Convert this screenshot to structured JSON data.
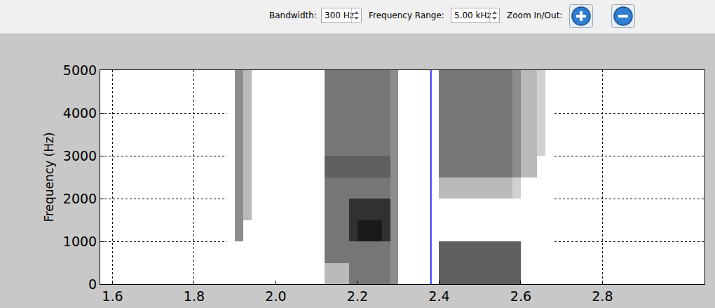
{
  "toolbar": {
    "bandwidth_label": "Bandwidth:",
    "bandwidth_value": "300 Hz",
    "range_label": "Frequency Range:",
    "range_value": "5.00 kHz",
    "zoom_label": "Zoom In/Out:"
  },
  "chart_data": {
    "type": "heatmap",
    "y_label": "Frequency (Hz)",
    "x": [
      1.89,
      1.91,
      1.93,
      1.95,
      1.97,
      1.99,
      2.01,
      2.03,
      2.05,
      2.07,
      2.09,
      2.11,
      2.13,
      2.15,
      2.17,
      2.19,
      2.21,
      2.23,
      2.25,
      2.27,
      2.29,
      2.31,
      2.33,
      2.35,
      2.37,
      2.39,
      2.41,
      2.43,
      2.45,
      2.47,
      2.49,
      2.51,
      2.53,
      2.55,
      2.57,
      2.59,
      2.61,
      2.63,
      2.65,
      2.67
    ],
    "y": [
      250,
      750,
      1250,
      1750,
      2250,
      2750,
      3250,
      3750,
      4250,
      4750
    ],
    "z": [
      [
        0,
        0,
        0,
        0,
        0,
        0,
        0,
        0,
        0,
        0,
        0,
        0,
        3,
        3,
        3,
        6,
        6,
        6,
        6,
        6,
        5,
        0,
        0,
        0,
        0,
        0,
        7,
        7,
        7,
        7,
        7,
        7,
        7,
        7,
        7,
        7,
        0,
        0,
        0,
        0
      ],
      [
        0,
        0,
        0,
        0,
        0,
        0,
        0,
        0,
        0,
        0,
        0,
        0,
        6,
        6,
        6,
        6,
        6,
        6,
        6,
        6,
        5,
        0,
        0,
        0,
        0,
        0,
        7,
        7,
        7,
        7,
        7,
        7,
        7,
        7,
        7,
        7,
        0,
        0,
        0,
        0
      ],
      [
        0,
        5,
        0,
        0,
        0,
        0,
        0,
        0,
        0,
        0,
        0,
        0,
        6,
        6,
        6,
        9,
        10,
        10,
        10,
        9,
        5,
        0,
        0,
        0,
        0,
        0,
        0,
        0,
        0,
        0,
        0,
        0,
        0,
        0,
        0,
        0,
        0,
        0,
        0,
        0
      ],
      [
        0,
        5,
        3,
        0,
        0,
        0,
        0,
        0,
        0,
        0,
        0,
        0,
        6,
        6,
        6,
        9,
        9,
        9,
        9,
        9,
        5,
        0,
        0,
        0,
        0,
        0,
        0,
        0,
        0,
        0,
        0,
        0,
        0,
        0,
        0,
        0,
        0,
        0,
        0,
        0
      ],
      [
        0,
        5,
        3,
        0,
        0,
        0,
        0,
        0,
        0,
        0,
        0,
        0,
        6,
        6,
        6,
        6,
        6,
        6,
        6,
        6,
        5,
        0,
        0,
        0,
        0,
        0,
        3,
        3,
        3,
        3,
        3,
        3,
        3,
        3,
        3,
        2,
        0,
        0,
        0,
        0
      ],
      [
        0,
        5,
        3,
        0,
        0,
        0,
        0,
        0,
        0,
        0,
        0,
        0,
        7,
        7,
        7,
        7,
        7,
        7,
        7,
        7,
        5,
        0,
        0,
        0,
        0,
        0,
        6,
        6,
        6,
        6,
        6,
        6,
        6,
        6,
        6,
        5,
        3,
        3,
        0,
        0
      ],
      [
        0,
        5,
        3,
        0,
        0,
        0,
        0,
        0,
        0,
        0,
        0,
        0,
        6,
        6,
        6,
        6,
        6,
        6,
        6,
        6,
        5,
        0,
        0,
        0,
        0,
        0,
        6,
        6,
        6,
        6,
        6,
        6,
        6,
        6,
        6,
        5,
        3,
        3,
        2,
        0
      ],
      [
        0,
        5,
        3,
        0,
        0,
        0,
        0,
        0,
        0,
        0,
        0,
        0,
        6,
        6,
        6,
        6,
        6,
        6,
        6,
        6,
        5,
        0,
        0,
        0,
        0,
        0,
        6,
        6,
        6,
        6,
        6,
        6,
        6,
        6,
        6,
        5,
        3,
        3,
        2,
        0
      ],
      [
        0,
        5,
        3,
        0,
        0,
        0,
        0,
        0,
        0,
        0,
        0,
        0,
        6,
        6,
        6,
        6,
        6,
        6,
        6,
        6,
        5,
        0,
        0,
        0,
        0,
        0,
        6,
        6,
        6,
        6,
        6,
        6,
        6,
        6,
        6,
        5,
        3,
        3,
        2,
        0
      ],
      [
        0,
        5,
        3,
        0,
        0,
        0,
        0,
        0,
        0,
        0,
        0,
        0,
        6,
        6,
        6,
        6,
        6,
        6,
        6,
        6,
        5,
        0,
        0,
        0,
        0,
        0,
        6,
        6,
        6,
        6,
        6,
        6,
        6,
        6,
        6,
        5,
        3,
        3,
        2,
        0
      ]
    ],
    "zlim": [
      0,
      10
    ],
    "color": "#1a1a1a",
    "cursor": {
      "x": 2.38,
      "color": "#2b2bff"
    },
    "xlim": [
      1.57,
      3.05
    ],
    "xticks": [
      1.6,
      1.8,
      {
        "value": 2,
        "label": "2.0"
      },
      2.2,
      2.4,
      2.6,
      2.8
    ],
    "ylim": [
      0,
      5000
    ],
    "yticks": [
      0,
      1000,
      2000,
      3000,
      4000,
      5000
    ],
    "grid": true
  }
}
